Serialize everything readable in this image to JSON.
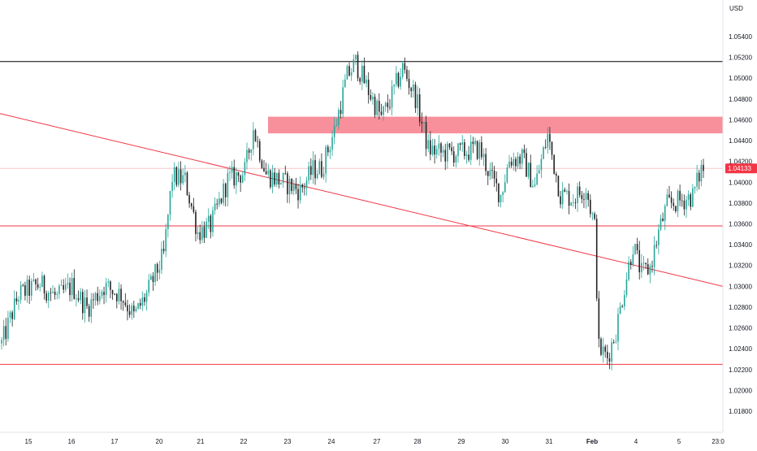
{
  "chart_data": {
    "type": "candlestick",
    "currency_label": "USD",
    "ylim": [
      1.0175,
      1.0555
    ],
    "price_ticks": [
      "1.01800",
      "1.02000",
      "1.02200",
      "1.02400",
      "1.02600",
      "1.02800",
      "1.03000",
      "1.03200",
      "1.03400",
      "1.03600",
      "1.03800",
      "1.04000",
      "1.04200",
      "1.04400",
      "1.04600",
      "1.04800",
      "1.05000",
      "1.05200",
      "1.05400"
    ],
    "date_ticks": [
      "15",
      "16",
      "17",
      "20",
      "21",
      "22",
      "23",
      "24",
      "27",
      "28",
      "29",
      "30",
      "31",
      "Feb",
      "4",
      "5",
      "23:0"
    ],
    "current_price": "1.04133",
    "horizontal_levels": [
      {
        "name": "resistance",
        "price": 1.0516,
        "color": "#000000"
      },
      {
        "name": "support-upper",
        "price": 1.0358,
        "color": "#f23645"
      },
      {
        "name": "support-lower",
        "price": 1.0225,
        "color": "#f23645"
      }
    ],
    "trendline": {
      "start_price": 1.0466,
      "end_price": 1.03,
      "color": "#f23645"
    },
    "zone": {
      "low": 1.0447,
      "high": 1.0463,
      "color": "#f77c8a"
    },
    "colors": {
      "up": "#26a69a",
      "down": "#222222",
      "price_tag": "#f23645"
    },
    "candles_keypoints": [
      [
        0,
        1.0245
      ],
      [
        8,
        1.0292
      ],
      [
        18,
        1.0302
      ],
      [
        26,
        1.0289
      ],
      [
        33,
        1.03
      ],
      [
        40,
        1.0279
      ],
      [
        48,
        1.03
      ],
      [
        56,
        1.0292
      ],
      [
        62,
        1.0271
      ],
      [
        68,
        1.0292
      ],
      [
        76,
        1.033
      ],
      [
        80,
        1.0405
      ],
      [
        86,
        1.0402
      ],
      [
        92,
        1.0352
      ],
      [
        98,
        1.0358
      ],
      [
        106,
        1.0402
      ],
      [
        114,
        1.041
      ],
      [
        118,
        1.0452
      ],
      [
        124,
        1.0408
      ],
      [
        132,
        1.04
      ],
      [
        140,
        1.0392
      ],
      [
        146,
        1.0412
      ],
      [
        150,
        1.0413
      ],
      [
        156,
        1.045
      ],
      [
        162,
        1.0502
      ],
      [
        166,
        1.0515
      ],
      [
        172,
        1.0488
      ],
      [
        178,
        1.0462
      ],
      [
        182,
        1.0478
      ],
      [
        188,
        1.051
      ],
      [
        194,
        1.0482
      ],
      [
        200,
        1.0432
      ],
      [
        206,
        1.0428
      ],
      [
        214,
        1.0428
      ],
      [
        224,
        1.0432
      ],
      [
        230,
        1.0402
      ],
      [
        234,
        1.0388
      ],
      [
        238,
        1.0422
      ],
      [
        244,
        1.0423
      ],
      [
        250,
        1.0396
      ],
      [
        256,
        1.0445
      ],
      [
        262,
        1.0388
      ],
      [
        268,
        1.0385
      ],
      [
        274,
        1.0395
      ],
      [
        278,
        1.0357
      ],
      [
        280,
        1.024
      ],
      [
        284,
        1.0232
      ],
      [
        288,
        1.0257
      ],
      [
        292,
        1.03
      ],
      [
        296,
        1.034
      ],
      [
        300,
        1.0312
      ],
      [
        304,
        1.0318
      ],
      [
        308,
        1.0352
      ],
      [
        312,
        1.0378
      ],
      [
        318,
        1.0382
      ],
      [
        324,
        1.0387
      ],
      [
        328,
        1.0413
      ]
    ]
  }
}
